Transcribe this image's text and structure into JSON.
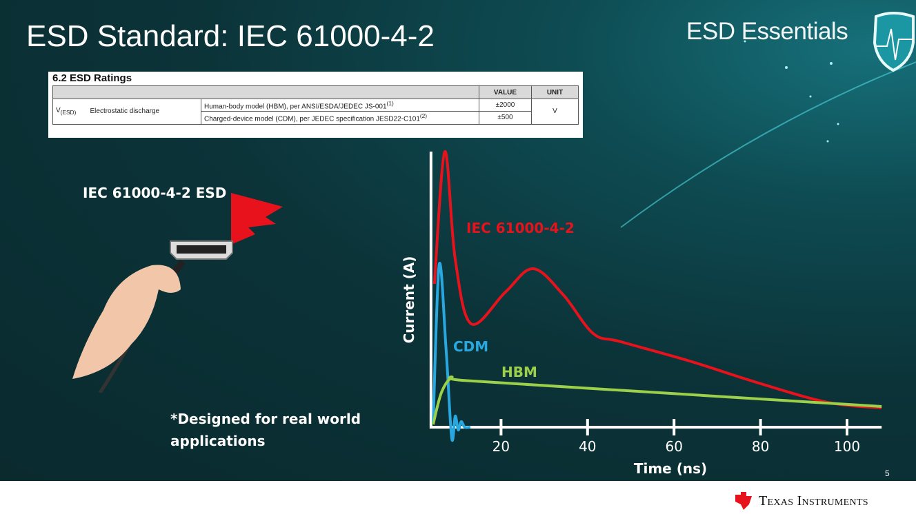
{
  "slide": {
    "title": "ESD Standard: IEC 61000-4-2",
    "brand": "ESD Essentials",
    "page_number": "5",
    "left_label": "IEC 61000-4-2 ESD",
    "note": "*Designed for real world applications",
    "footer_logo": "Texas Instruments"
  },
  "table": {
    "title": "6.2   ESD Ratings",
    "headers": [
      "",
      "",
      "",
      "VALUE",
      "UNIT"
    ],
    "symbol": "V",
    "symbol_sub": "(ESD)",
    "parameter": "Electrostatic discharge",
    "rows": [
      {
        "condition": "Human-body model (HBM), per ANSI/ESDA/JEDEC JS-001",
        "footnote": "(1)",
        "value": "±2000"
      },
      {
        "condition": "Charged-device model (CDM), per JEDEC specification JESD22-C101",
        "footnote": "(2)",
        "value": "±500"
      }
    ],
    "unit": "V"
  },
  "chart_data": {
    "type": "line",
    "xlabel": "Time (ns)",
    "ylabel": "Current (A)",
    "xticks": [
      20,
      40,
      60,
      80,
      100
    ],
    "xlim": [
      3.8,
      108
    ],
    "ylim": [
      0,
      1
    ],
    "grid": false,
    "legend": "inline labels",
    "series": [
      {
        "name": "IEC 61000-4-2",
        "color": "#e8121c",
        "x": [
          4.6,
          7.0,
          9.4,
          13.1,
          21,
          27.4,
          34.4,
          41.3,
          47.7,
          63.6,
          79.6,
          95.5,
          108
        ],
        "y": [
          0.52,
          1.0,
          0.61,
          0.375,
          0.49,
          0.575,
          0.48,
          0.34,
          0.31,
          0.24,
          0.16,
          0.09,
          0.07
        ]
      },
      {
        "name": "CDM",
        "color": "#29a8e0",
        "x": [
          4.3,
          5.7,
          7.3,
          8.6,
          9.4,
          10.1,
          10.8,
          11.6,
          12.9
        ],
        "y": [
          0.01,
          0.59,
          0.28,
          -0.04,
          0.04,
          -0.01,
          0.02,
          0.0,
          0.0
        ]
      },
      {
        "name": "HBM",
        "color": "#9ccf4a",
        "x": [
          4.3,
          6.2,
          8.6,
          11,
          41.3,
          108
        ],
        "y": [
          0.01,
          0.125,
          0.18,
          0.17,
          0.14,
          0.075
        ]
      }
    ]
  }
}
